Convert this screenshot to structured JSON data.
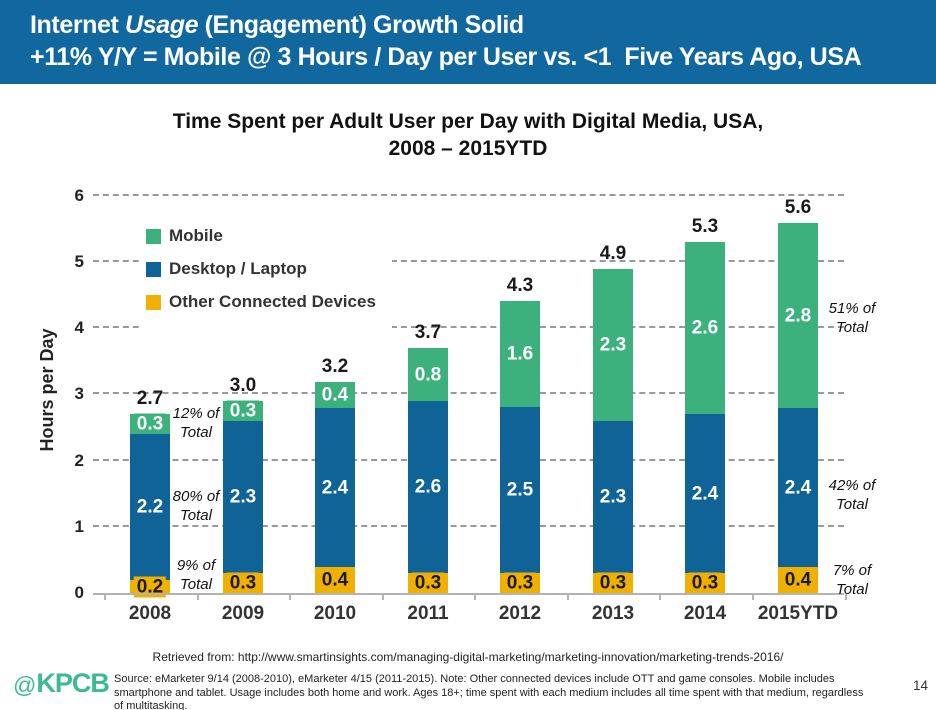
{
  "header": {
    "bg_color": "#11689F",
    "line1_pre": "Internet ",
    "line1_italic": "Usage",
    "line1_post": " (Engagement) Growth Solid",
    "line2": "+11% Y/Y = Mobile @ 3 Hours / Day per User vs. <1  Five Years Ago, USA"
  },
  "chart_data": {
    "type": "bar",
    "stacked": true,
    "title_line1": "Time Spent per Adult User per Day with Digital Media, USA,",
    "title_line2": "2008 – 2015YTD",
    "ylabel": "Hours per Day",
    "ylim": [
      0,
      6
    ],
    "yticks": [
      0,
      1,
      2,
      3,
      4,
      5,
      6
    ],
    "grid": "horizontal-dashed",
    "legend_position": "upper-left-inside",
    "categories": [
      "2008",
      "2009",
      "2010",
      "2011",
      "2012",
      "2013",
      "2014",
      "2015YTD"
    ],
    "series": [
      {
        "name": "Other Connected Devices",
        "color": "#F0B000",
        "label_color": "#1a1a1a",
        "values": [
          0.2,
          0.3,
          0.4,
          0.3,
          0.3,
          0.3,
          0.3,
          0.4
        ]
      },
      {
        "name": "Desktop / Laptop",
        "color": "#0F6396",
        "label_color": "#ffffff",
        "values": [
          2.2,
          2.3,
          2.4,
          2.6,
          2.5,
          2.3,
          2.4,
          2.4
        ]
      },
      {
        "name": "Mobile",
        "color": "#3CB17E",
        "label_color": "#ffffff",
        "values": [
          0.3,
          0.3,
          0.4,
          0.8,
          1.6,
          2.3,
          2.6,
          2.8
        ]
      }
    ],
    "totals": [
      2.7,
      3.0,
      3.2,
      3.7,
      4.3,
      4.9,
      5.3,
      5.6
    ],
    "annotations_left": [
      "12% of Total",
      "80% of Total",
      "9% of Total"
    ],
    "annotations_right": [
      "51% of Total",
      "42% of Total",
      "7% of Total"
    ]
  },
  "footer": {
    "retrieved": "Retrieved from: http://www.smartinsights.com/managing-digital-marketing/marketing-innovation/marketing-trends-2016/",
    "logo_at": "@",
    "logo_text": "KPCB",
    "logo_color": "#3CBA90",
    "source": "Source: eMarketer 9/14 (2008-2010), eMarketer 4/15 (2011-2015). Note: Other connected devices include OTT and game consoles. Mobile includes smartphone and tablet. Usage includes both home and work. Ages 18+; time spent with each medium includes all time spent with that medium, regardless of multitasking.",
    "page_number": "14"
  }
}
